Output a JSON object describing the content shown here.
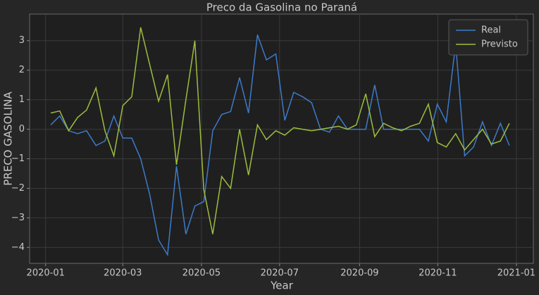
{
  "chart_data": {
    "type": "line",
    "title": "Preco da Gasolina no Paraná",
    "xlabel": "Year",
    "ylabel": "PRECO GASOLINA",
    "x": [
      2020.011,
      2020.03,
      2020.049,
      2020.068,
      2020.087,
      2020.107,
      2020.126,
      2020.145,
      2020.164,
      2020.183,
      2020.202,
      2020.221,
      2020.24,
      2020.259,
      2020.278,
      2020.298,
      2020.317,
      2020.336,
      2020.355,
      2020.374,
      2020.393,
      2020.412,
      2020.431,
      2020.45,
      2020.469,
      2020.489,
      2020.508,
      2020.527,
      2020.546,
      2020.565,
      2020.584,
      2020.603,
      2020.622,
      2020.641,
      2020.66,
      2020.68,
      2020.699,
      2020.718,
      2020.737,
      2020.756,
      2020.775,
      2020.794,
      2020.813,
      2020.832,
      2020.851,
      2020.871,
      2020.89,
      2020.909,
      2020.928,
      2020.947,
      2020.966,
      2020.985
    ],
    "series": [
      {
        "name": "Real",
        "color": "#3d7ac9",
        "values": [
          0.15,
          0.45,
          -0.05,
          -0.15,
          -0.05,
          -0.55,
          -0.4,
          0.45,
          -0.3,
          -0.3,
          -1.0,
          -2.2,
          -3.75,
          -4.25,
          -1.25,
          -3.55,
          -2.6,
          -2.45,
          -0.05,
          0.5,
          0.6,
          1.75,
          0.55,
          3.2,
          2.35,
          2.55,
          0.3,
          1.25,
          1.1,
          0.9,
          0.0,
          -0.1,
          0.45,
          0.0,
          0.0,
          0.0,
          1.5,
          0.0,
          0.0,
          0.0,
          0.0,
          0.0,
          -0.4,
          0.85,
          0.25,
          2.9,
          -0.9,
          -0.6,
          0.25,
          -0.55,
          0.2,
          -0.55
        ]
      },
      {
        "name": "Previsto",
        "color": "#9cbd3e",
        "values": [
          0.55,
          0.62,
          -0.05,
          0.4,
          0.65,
          1.4,
          -0.05,
          -0.9,
          0.8,
          1.1,
          3.45,
          2.2,
          0.95,
          1.85,
          -1.2,
          1.0,
          3.0,
          -2.05,
          -3.55,
          -1.6,
          -2.0,
          0.0,
          -1.55,
          0.15,
          -0.35,
          -0.05,
          -0.2,
          0.05,
          0.0,
          -0.05,
          0.0,
          0.05,
          0.1,
          0.0,
          0.15,
          1.2,
          -0.25,
          0.2,
          0.05,
          -0.05,
          0.1,
          0.2,
          0.85,
          -0.45,
          -0.6,
          -0.15,
          -0.7,
          -0.35,
          0.0,
          -0.5,
          -0.4,
          0.2
        ]
      }
    ],
    "xlim": [
      2019.966,
      2021.036
    ],
    "ylim": [
      -4.54,
      3.9
    ],
    "xticks": [
      {
        "value": 2020.0,
        "label": "2020-01"
      },
      {
        "value": 2020.164,
        "label": "2020-03"
      },
      {
        "value": 2020.331,
        "label": "2020-05"
      },
      {
        "value": 2020.497,
        "label": "2020-07"
      },
      {
        "value": 2020.667,
        "label": "2020-09"
      },
      {
        "value": 2020.833,
        "label": "2020-11"
      },
      {
        "value": 2021.0,
        "label": "2021-01"
      }
    ],
    "yticks": [
      {
        "value": -4,
        "label": "−4"
      },
      {
        "value": -3,
        "label": "−3"
      },
      {
        "value": -2,
        "label": "−2"
      },
      {
        "value": -1,
        "label": "−1"
      },
      0,
      1,
      2,
      3
    ],
    "grid": true,
    "legend": "upper right"
  }
}
